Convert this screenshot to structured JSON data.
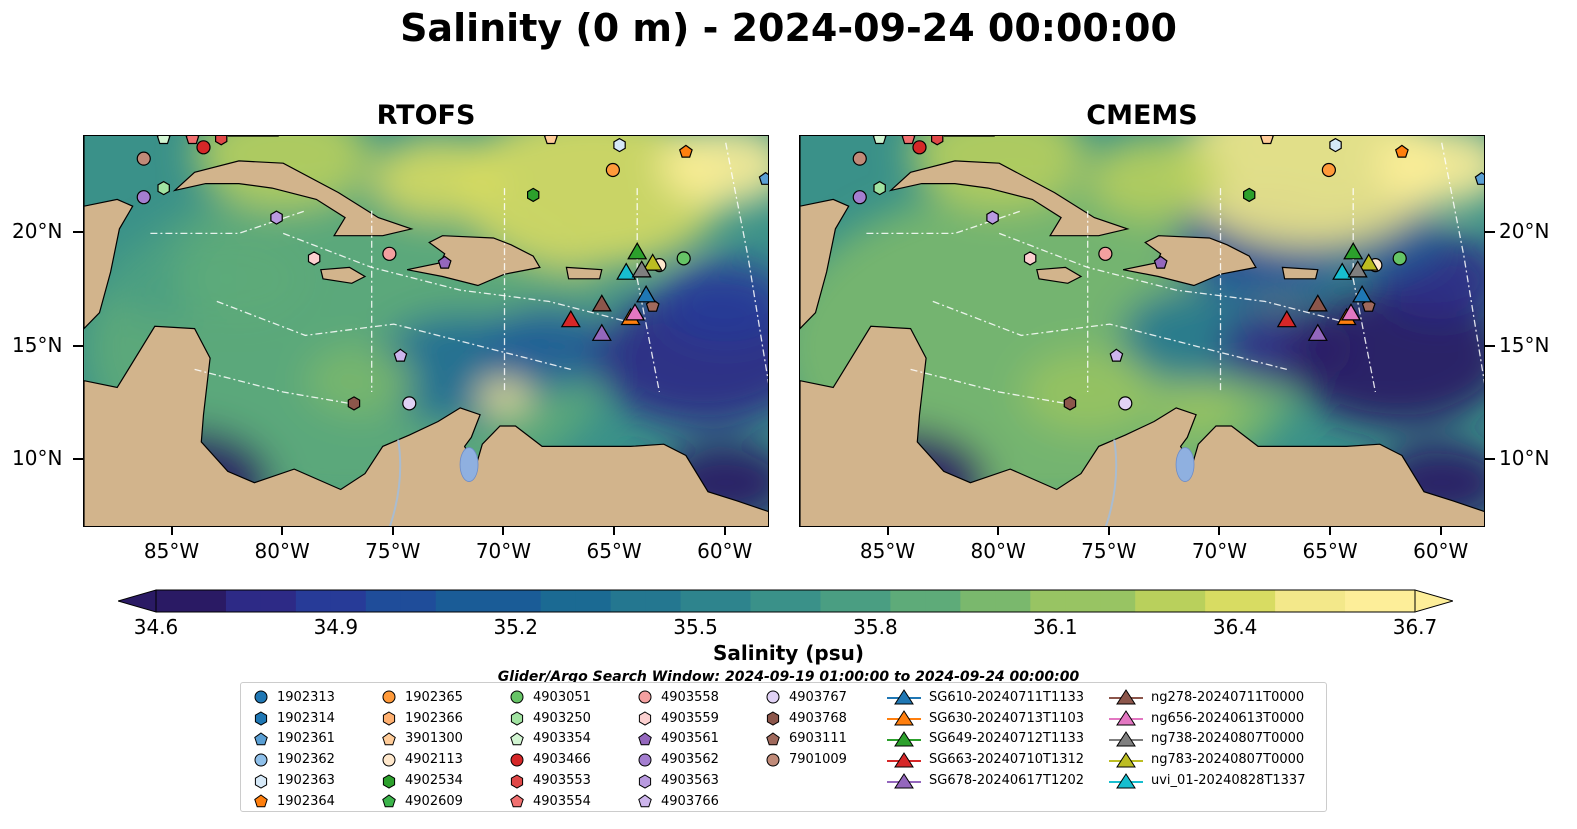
{
  "title": "Salinity (0 m) - 2024-09-24 00:00:00",
  "panels": [
    {
      "title": "RTOFS",
      "variant": "rtofs"
    },
    {
      "title": "CMEMS",
      "variant": "cmems"
    }
  ],
  "colors": {
    "land": "#d2b48c",
    "rivers": "#a9bcd0",
    "lake": "#8fb0e0",
    "eez_lines": "#ffffff"
  },
  "chart_data": {
    "type": "heatmap",
    "variable": "Salinity",
    "units": "psu",
    "lon_range": [
      -89,
      -58
    ],
    "lat_range": [
      7,
      24.3
    ],
    "lon_ticks": [
      -85,
      -80,
      -75,
      -70,
      -65,
      -60
    ],
    "lon_tick_labels": [
      "85°W",
      "80°W",
      "75°W",
      "70°W",
      "65°W",
      "60°W"
    ],
    "lat_ticks": [
      10,
      15,
      20
    ],
    "lat_tick_labels": [
      "10°N",
      "15°N",
      "20°N"
    ],
    "colorbar": {
      "label": "Salinity (psu)",
      "min": 34.6,
      "max": 36.7,
      "ticks": [
        34.6,
        34.9,
        35.2,
        35.5,
        35.8,
        36.1,
        36.4,
        36.7
      ],
      "tick_labels": [
        "34.6",
        "34.9",
        "35.2",
        "35.5",
        "35.8",
        "36.1",
        "36.4",
        "36.7"
      ],
      "extend": "both",
      "colormap": "haline",
      "colors": [
        "#2a1a64",
        "#2d2a86",
        "#273b98",
        "#1f4d9a",
        "#1a5c97",
        "#1b6a93",
        "#247790",
        "#2e848d",
        "#3a9189",
        "#4a9e82",
        "#5eab79",
        "#7ab86d",
        "#98c463",
        "#b9d05c",
        "#d8dc62",
        "#f3e88a",
        "#fdee99"
      ]
    },
    "search_window": "Glider/Argo Search Window: 2024-09-19 01:00:00 to 2024-09-24 00:00:00",
    "argo_floats": [
      {
        "id": "1902313",
        "marker": "circle",
        "color": "#1f77b4"
      },
      {
        "id": "1902314",
        "marker": "hexagon",
        "color": "#1f77b4"
      },
      {
        "id": "1902361",
        "marker": "pentagon",
        "color": "#5a9fd4"
      },
      {
        "id": "1902362",
        "marker": "circle",
        "color": "#8fc0ea"
      },
      {
        "id": "1902363",
        "marker": "hexagon",
        "color": "#d6e9f8"
      },
      {
        "id": "1902364",
        "marker": "pentagon",
        "color": "#ff7f0e"
      },
      {
        "id": "1902365",
        "marker": "circle",
        "color": "#ff9a3a"
      },
      {
        "id": "1902366",
        "marker": "hexagon",
        "color": "#ffb070"
      },
      {
        "id": "3901300",
        "marker": "pentagon",
        "color": "#ffcc99"
      },
      {
        "id": "4902113",
        "marker": "circle",
        "color": "#ffe8cc"
      },
      {
        "id": "4902534",
        "marker": "hexagon",
        "color": "#2ca02c"
      },
      {
        "id": "4902609",
        "marker": "pentagon",
        "color": "#3cb44b"
      },
      {
        "id": "4903051",
        "marker": "circle",
        "color": "#66c466"
      },
      {
        "id": "4903250",
        "marker": "hexagon",
        "color": "#a1e3a1"
      },
      {
        "id": "4903354",
        "marker": "pentagon",
        "color": "#d2f5d2"
      },
      {
        "id": "4903466",
        "marker": "circle",
        "color": "#d62728"
      },
      {
        "id": "4903553",
        "marker": "hexagon",
        "color": "#e04848"
      },
      {
        "id": "4903554",
        "marker": "pentagon",
        "color": "#f07070"
      },
      {
        "id": "4903558",
        "marker": "circle",
        "color": "#f4a0a0"
      },
      {
        "id": "4903559",
        "marker": "hexagon",
        "color": "#fcd0d0"
      },
      {
        "id": "4903561",
        "marker": "pentagon",
        "color": "#9467bd"
      },
      {
        "id": "4903562",
        "marker": "circle",
        "color": "#a47ed0"
      },
      {
        "id": "4903563",
        "marker": "hexagon",
        "color": "#b99ae0"
      },
      {
        "id": "4903766",
        "marker": "pentagon",
        "color": "#cdb5ec"
      },
      {
        "id": "4903767",
        "marker": "circle",
        "color": "#e1d2f5"
      },
      {
        "id": "4903768",
        "marker": "hexagon",
        "color": "#8c564b"
      },
      {
        "id": "6903111",
        "marker": "pentagon",
        "color": "#a0695c"
      },
      {
        "id": "7901009",
        "marker": "circle",
        "color": "#c08a78"
      }
    ],
    "gliders": [
      {
        "id": "SG610-20240711T1133",
        "color": "#1f77b4"
      },
      {
        "id": "SG630-20240713T1103",
        "color": "#ff7f0e"
      },
      {
        "id": "SG649-20240712T1133",
        "color": "#2ca02c"
      },
      {
        "id": "SG663-20240710T1312",
        "color": "#d62728"
      },
      {
        "id": "SG678-20240617T1202",
        "color": "#9467bd"
      },
      {
        "id": "ng278-20240711T0000",
        "color": "#8c564b"
      },
      {
        "id": "ng656-20240613T0000",
        "color": "#e377c2"
      },
      {
        "id": "ng738-20240807T0000",
        "color": "#7f7f7f"
      },
      {
        "id": "ng783-20240807T0000",
        "color": "#bcbd22"
      },
      {
        "id": "uvi_01-20240828T1337",
        "color": "#17becf"
      }
    ],
    "float_positions": [
      {
        "id": "1902361",
        "lon": -58.2,
        "lat": 22.4
      },
      {
        "id": "1902363",
        "lon": -64.8,
        "lat": 23.9
      },
      {
        "id": "1902364",
        "lon": -61.8,
        "lat": 23.6
      },
      {
        "id": "1902365",
        "lon": -65.1,
        "lat": 22.8
      },
      {
        "id": "3901300",
        "lon": -67.9,
        "lat": 24.2
      },
      {
        "id": "4902534",
        "lon": -68.7,
        "lat": 21.7
      },
      {
        "id": "4903051",
        "lon": -61.9,
        "lat": 18.9
      },
      {
        "id": "4903250",
        "lon": -85.4,
        "lat": 22.0
      },
      {
        "id": "4903354",
        "lon": -85.4,
        "lat": 24.2
      },
      {
        "id": "4903466",
        "lon": -83.6,
        "lat": 23.8
      },
      {
        "id": "4903553",
        "lon": -82.8,
        "lat": 24.2
      },
      {
        "id": "4903554",
        "lon": -84.1,
        "lat": 24.2
      },
      {
        "id": "4903558",
        "lon": -75.2,
        "lat": 19.1
      },
      {
        "id": "4903559",
        "lon": -78.6,
        "lat": 18.9
      },
      {
        "id": "4903561",
        "lon": -72.7,
        "lat": 18.7
      },
      {
        "id": "4903562",
        "lon": -86.3,
        "lat": 21.6
      },
      {
        "id": "4903563",
        "lon": -80.3,
        "lat": 20.7
      },
      {
        "id": "4903766",
        "lon": -74.7,
        "lat": 14.6
      },
      {
        "id": "4903767",
        "lon": -74.3,
        "lat": 12.5
      },
      {
        "id": "4903768",
        "lon": -76.8,
        "lat": 12.5
      },
      {
        "id": "6903111",
        "lon": -63.3,
        "lat": 16.8
      },
      {
        "id": "7901009",
        "lon": -86.3,
        "lat": 23.3
      },
      {
        "id": "4902113",
        "lon": -63.0,
        "lat": 18.6
      }
    ],
    "glider_positions": [
      {
        "id": "SG663-20240710T1312",
        "lon": -67.0,
        "lat": 16.2
      },
      {
        "id": "ng278-20240711T0000",
        "lon": -65.6,
        "lat": 16.9
      },
      {
        "id": "SG678-20240617T1202",
        "lon": -65.6,
        "lat": 15.6
      },
      {
        "id": "SG630-20240713T1103",
        "lon": -64.3,
        "lat": 16.3
      },
      {
        "id": "ng656-20240613T0000",
        "lon": -64.1,
        "lat": 16.5
      },
      {
        "id": "SG610-20240711T1133",
        "lon": -63.6,
        "lat": 17.3
      },
      {
        "id": "SG649-20240712T1133",
        "lon": -64.0,
        "lat": 19.2
      },
      {
        "id": "uvi_01-20240828T1337",
        "lon": -64.5,
        "lat": 18.3
      },
      {
        "id": "ng783-20240807T0000",
        "lon": -63.3,
        "lat": 18.7
      },
      {
        "id": "ng738-20240807T0000",
        "lon": -63.8,
        "lat": 18.4
      }
    ]
  }
}
